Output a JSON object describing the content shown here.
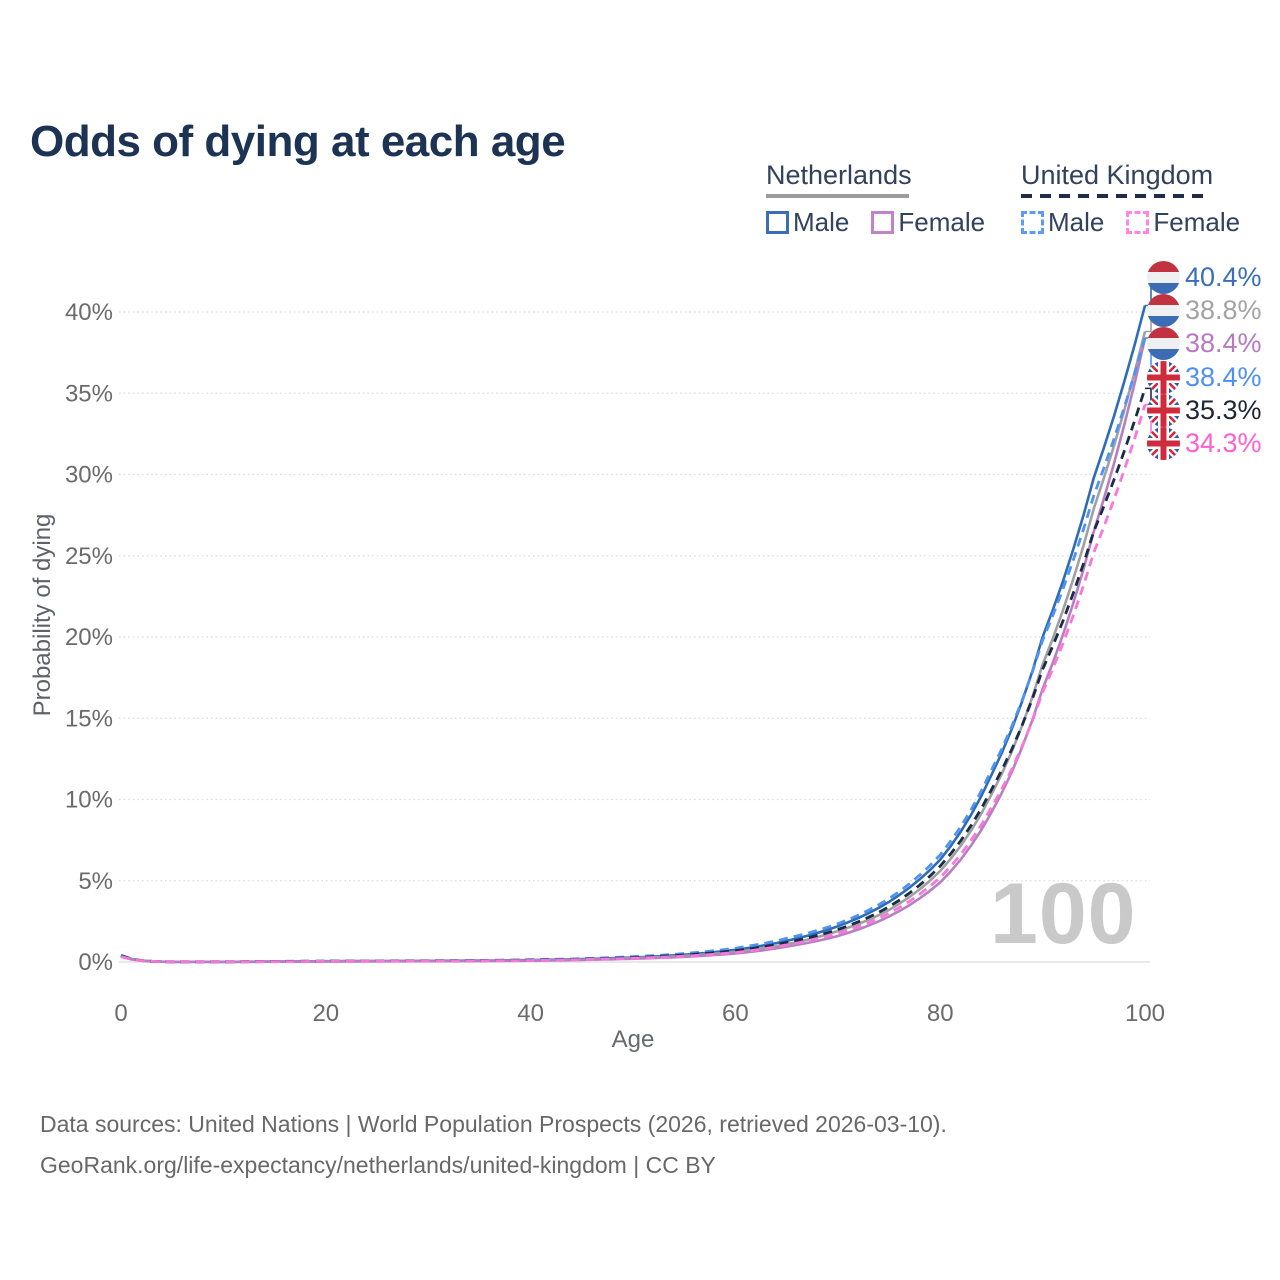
{
  "title": "Odds of dying at each age",
  "watermark": "100",
  "legend": {
    "groups": [
      {
        "label": "Netherlands",
        "line_style": "solid",
        "color": "#9c9c9c",
        "items": [
          {
            "label": "Male",
            "color": "#3a6fb7",
            "line_style": "solid"
          },
          {
            "label": "Female",
            "color": "#c083cb",
            "line_style": "solid"
          }
        ]
      },
      {
        "label": "United Kingdom",
        "line_style": "dashed",
        "color": "#1f2d49",
        "items": [
          {
            "label": "Male",
            "color": "#5e9bf7",
            "line_style": "dashed"
          },
          {
            "label": "Female",
            "color": "#ff85e3",
            "line_style": "dashed"
          }
        ]
      }
    ]
  },
  "end_labels": [
    {
      "flag": "nl-flag-icon",
      "value": "40.4%",
      "color": "#3a6fb7"
    },
    {
      "flag": "nl-flag-icon",
      "value": "38.8%",
      "color": "#a3a3a3"
    },
    {
      "flag": "nl-flag-icon",
      "value": "38.4%",
      "color": "#b778c4"
    },
    {
      "flag": "uk-flag-icon",
      "value": "38.4%",
      "color": "#4e90f0"
    },
    {
      "flag": "uk-flag-icon",
      "value": "35.3%",
      "color": "#1e2633"
    },
    {
      "flag": "uk-flag-icon",
      "value": "34.3%",
      "color": "#ff5fd2"
    }
  ],
  "footer": {
    "line1": "Data sources: United Nations | World Population Prospects (2026, retrieved 2026-03-10).",
    "line2": "GeoRank.org/life-expectancy/netherlands/united-kingdom | CC BY"
  },
  "chart_data": {
    "type": "line",
    "title": "Odds of dying at each age",
    "xlabel": "Age",
    "ylabel": "Probability of dying",
    "x_ticks": [
      0,
      20,
      40,
      60,
      80,
      100
    ],
    "y_ticks": [
      "0%",
      "5%",
      "10%",
      "15%",
      "20%",
      "25%",
      "30%",
      "35%",
      "40%"
    ],
    "xlim": [
      0,
      100
    ],
    "ylim_percent": [
      0,
      42
    ],
    "grid": "on",
    "legend_position": "top-right",
    "units": "percent probability of dying at each age",
    "ages": [
      0,
      5,
      10,
      15,
      20,
      25,
      30,
      35,
      40,
      45,
      50,
      55,
      60,
      65,
      70,
      75,
      80,
      85,
      90,
      95,
      100
    ],
    "series": [
      {
        "name": "Netherlands Male",
        "country": "Netherlands",
        "sex": "male",
        "style": "solid",
        "color": "#2e6cb5",
        "end_value": 40.4,
        "end_label": "40.4%",
        "values": [
          0.4,
          0.01,
          0.01,
          0.03,
          0.05,
          0.06,
          0.07,
          0.09,
          0.12,
          0.18,
          0.28,
          0.45,
          0.75,
          1.3,
          2.2,
          3.7,
          6.3,
          11.5,
          20.0,
          29.8,
          40.4
        ]
      },
      {
        "name": "Netherlands Total",
        "country": "Netherlands",
        "sex": "both",
        "style": "solid",
        "color": "#a0a0a0",
        "end_value": 38.8,
        "end_label": "38.8%",
        "values": [
          0.36,
          0.01,
          0.01,
          0.02,
          0.04,
          0.05,
          0.06,
          0.07,
          0.1,
          0.15,
          0.24,
          0.38,
          0.62,
          1.1,
          1.9,
          3.2,
          5.6,
          10.3,
          18.3,
          27.9,
          38.8
        ]
      },
      {
        "name": "Netherlands Female",
        "country": "Netherlands",
        "sex": "female",
        "style": "solid",
        "color": "#b57fc2",
        "end_value": 38.4,
        "end_label": "38.4%",
        "values": [
          0.32,
          0.01,
          0.01,
          0.02,
          0.03,
          0.04,
          0.05,
          0.06,
          0.08,
          0.13,
          0.2,
          0.32,
          0.52,
          0.95,
          1.6,
          2.8,
          4.9,
          9.2,
          16.8,
          26.5,
          38.4
        ]
      },
      {
        "name": "United Kingdom Male",
        "country": "United Kingdom",
        "sex": "male",
        "style": "dashed",
        "color": "#4e93f5",
        "end_value": 38.4,
        "end_label": "38.4%",
        "values": [
          0.42,
          0.01,
          0.02,
          0.04,
          0.06,
          0.07,
          0.08,
          0.1,
          0.14,
          0.21,
          0.33,
          0.52,
          0.85,
          1.45,
          2.35,
          3.9,
          6.6,
          11.8,
          19.8,
          28.7,
          38.4
        ]
      },
      {
        "name": "United Kingdom Total",
        "country": "United Kingdom",
        "sex": "both",
        "style": "dashed",
        "color": "#1b2b49",
        "end_value": 35.3,
        "end_label": "35.3%",
        "values": [
          0.38,
          0.01,
          0.01,
          0.03,
          0.05,
          0.06,
          0.07,
          0.08,
          0.11,
          0.17,
          0.27,
          0.43,
          0.7,
          1.2,
          2.0,
          3.4,
          5.9,
          10.6,
          18.0,
          26.5,
          35.3
        ]
      },
      {
        "name": "United Kingdom Female",
        "country": "United Kingdom",
        "sex": "female",
        "style": "dashed",
        "color": "#fb76db",
        "end_value": 34.3,
        "end_label": "34.3%",
        "values": [
          0.34,
          0.01,
          0.01,
          0.02,
          0.04,
          0.05,
          0.06,
          0.07,
          0.09,
          0.15,
          0.23,
          0.36,
          0.58,
          1.05,
          1.75,
          3.0,
          5.2,
          9.5,
          16.6,
          25.2,
          34.3
        ]
      }
    ]
  }
}
